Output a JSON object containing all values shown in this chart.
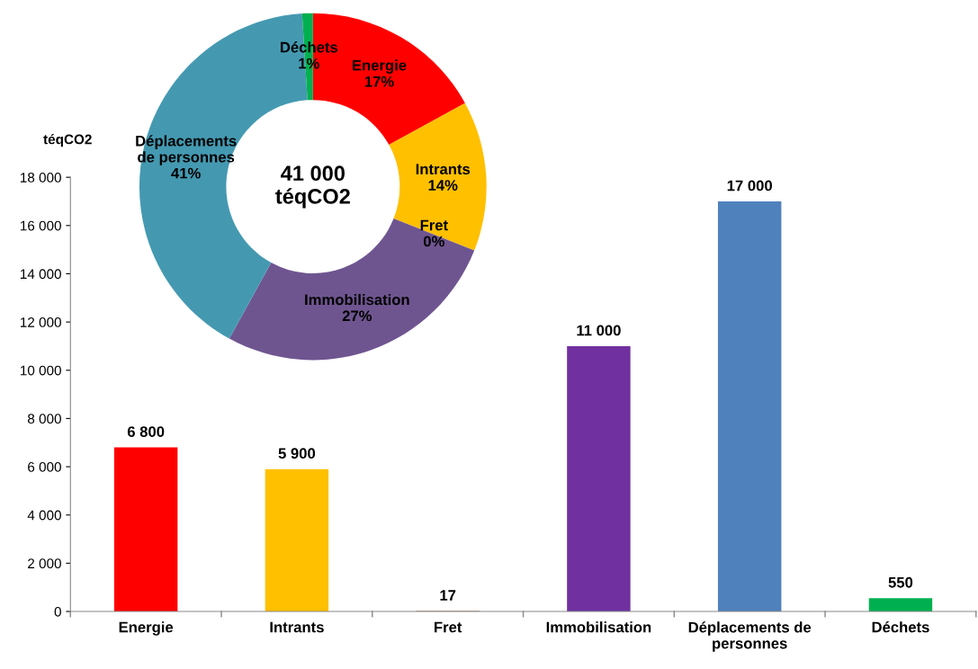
{
  "chart_data": [
    {
      "type": "bar",
      "ylabel": "téqCO2",
      "categories": [
        "Energie",
        "Intrants",
        "Fret",
        "Immobilisation",
        "Déplacements de\npersonnes",
        "Déchets"
      ],
      "values": [
        6800,
        5900,
        17,
        11000,
        17000,
        550
      ],
      "colors": [
        "#ff0000",
        "#ffc000",
        "#8b5a2b",
        "#7030a0",
        "#4f81bd",
        "#00b050"
      ],
      "value_labels": [
        "6 800",
        "5 900",
        "17",
        "11 000",
        "17 000",
        "550"
      ],
      "ylim": [
        0,
        18000
      ],
      "yticks": [
        {
          "value": 0,
          "label": "0"
        },
        {
          "value": 2000,
          "label": "2 000"
        },
        {
          "value": 4000,
          "label": "4 000"
        },
        {
          "value": 6000,
          "label": "6 000"
        },
        {
          "value": 8000,
          "label": "8 000"
        },
        {
          "value": 10000,
          "label": "10 000"
        },
        {
          "value": 12000,
          "label": "12 000"
        },
        {
          "value": 14000,
          "label": "14 000"
        },
        {
          "value": 16000,
          "label": "16 000"
        },
        {
          "value": 18000,
          "label": "18 000"
        }
      ],
      "grid": false
    },
    {
      "type": "donut",
      "categories": [
        "Energie",
        "Intrants",
        "Fret",
        "Immobilisation",
        "Déplacements\nde personnes",
        "Déchets"
      ],
      "values": [
        17,
        14,
        0,
        27,
        41,
        1
      ],
      "colors": [
        "#ff0000",
        "#ffc000",
        "#8b5a2b",
        "#6f5590",
        "#4499b1",
        "#00b050"
      ],
      "value_labels": [
        "17%",
        "14%",
        "0%",
        "27%",
        "41%",
        "1%"
      ],
      "annotations": [
        "41 000\ntéqCO2"
      ]
    }
  ]
}
